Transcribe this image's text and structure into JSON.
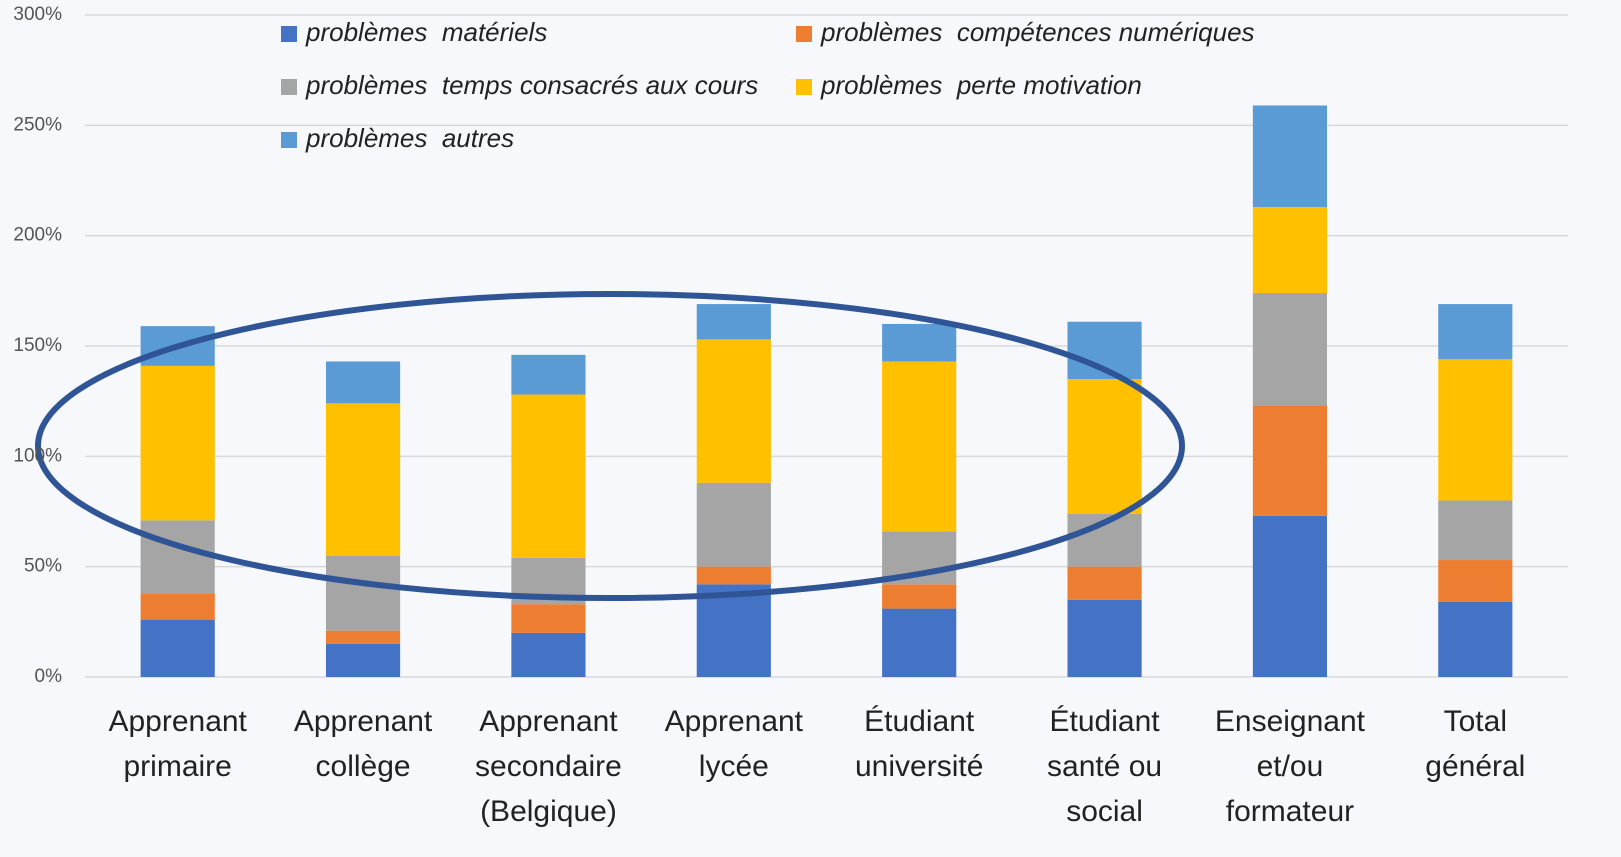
{
  "chart_data": {
    "type": "stacked_bar",
    "categories": [
      [
        "Apprenant",
        "primaire"
      ],
      [
        "Apprenant",
        "collège"
      ],
      [
        "Apprenant",
        "secondaire",
        "(Belgique)"
      ],
      [
        "Apprenant",
        "lycée"
      ],
      [
        "Étudiant",
        "université"
      ],
      [
        "Étudiant",
        "santé ou",
        "social"
      ],
      [
        "Enseignant",
        "et/ou",
        "formateur"
      ],
      [
        "Total",
        "général"
      ]
    ],
    "series": [
      {
        "name": "problèmes  matériels",
        "color": "#4472c4",
        "values": [
          26,
          15,
          20,
          42,
          31,
          35,
          73,
          34
        ]
      },
      {
        "name": "problèmes  compétences numériques",
        "color": "#ed7d31",
        "values": [
          12,
          6,
          13,
          8,
          11,
          15,
          50,
          19
        ]
      },
      {
        "name": "problèmes  temps consacrés aux cours",
        "color": "#a5a5a5",
        "values": [
          33,
          34,
          21,
          38,
          24,
          24,
          51,
          27
        ]
      },
      {
        "name": "problèmes  perte motivation",
        "color": "#ffc000",
        "values": [
          70,
          69,
          74,
          65,
          77,
          61,
          39,
          64
        ]
      },
      {
        "name": "problèmes  autres",
        "color": "#5b9bd5",
        "values": [
          18,
          19,
          18,
          16,
          17,
          26,
          46,
          25
        ]
      }
    ],
    "ylim": [
      0,
      300
    ],
    "yticks": [
      {
        "value": 0,
        "label": "0%"
      },
      {
        "value": 50,
        "label": "50%"
      },
      {
        "value": 100,
        "label": "100%"
      },
      {
        "value": 150,
        "label": "150%"
      },
      {
        "value": 200,
        "label": "200%"
      },
      {
        "value": 250,
        "label": "250%"
      },
      {
        "value": 300,
        "label": "300%"
      }
    ],
    "grid": true
  }
}
